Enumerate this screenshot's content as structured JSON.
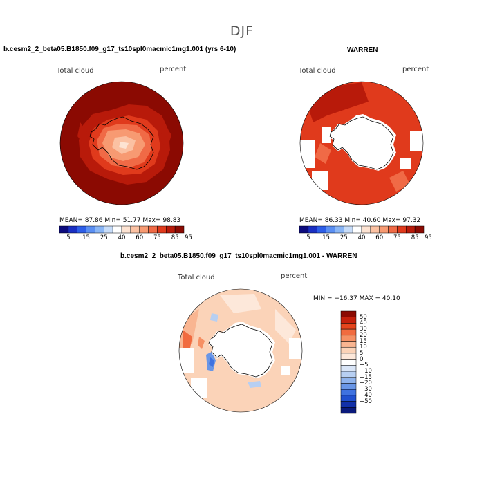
{
  "season": "DJF",
  "panels": [
    {
      "title": "b.cesm2_2_beta05.B1850.f09_g17_ts10spl0macmic1mg1.001 (yrs 6-10)",
      "variable": "Total cloud",
      "units": "percent",
      "stats": {
        "mean": "87.86",
        "min": "51.77",
        "max": "98.83"
      },
      "stats_text": "MEAN=   87.86   Min=   51.77   Max=   98.83"
    },
    {
      "title": "WARREN",
      "variable": "Total cloud",
      "units": "percent",
      "stats": {
        "mean": "86.33",
        "min": "40.60",
        "max": "97.32"
      },
      "stats_text": "MEAN=   86.33   Min=   40.60   Max=   97.32"
    },
    {
      "title": "b.cesm2_2_beta05.B1850.f09_g17_ts10spl0macmic1mg1.001 - WARREN",
      "variable": "Total cloud",
      "units": "percent",
      "stats": {
        "min": "-16.37",
        "max": "40.10"
      },
      "stats_text": "MIN = −16.37 MAX =  40.10"
    }
  ],
  "abs_colorbar": {
    "colors": [
      "#0c0b7d",
      "#1a2fc2",
      "#2d5ee8",
      "#5b8ff2",
      "#8ab6f5",
      "#c7dcf8",
      "#ffffff",
      "#fde3d2",
      "#fbc1a2",
      "#f79a72",
      "#f06a46",
      "#e03a1c",
      "#b81a0a",
      "#8b0a02"
    ],
    "tick_labels": [
      "5",
      "15",
      "25",
      "40",
      "60",
      "75",
      "85",
      "95"
    ]
  },
  "diff_colorbar": {
    "colors": [
      "#8b0a02",
      "#c4200c",
      "#e5451d",
      "#f16b3f",
      "#f69064",
      "#f9b591",
      "#fbd3b8",
      "#fde8da",
      "#ffffff",
      "#d9e5f7",
      "#b7cff2",
      "#8fb3ec",
      "#6996e6",
      "#3f72e0",
      "#2050cf",
      "#1230a8",
      "#0a1a7c"
    ],
    "tick_labels": [
      "50",
      "40",
      "30",
      "20",
      "15",
      "10",
      "5",
      "0",
      "−5",
      "−10",
      "−15",
      "−20",
      "−30",
      "−40",
      "−50"
    ]
  }
}
